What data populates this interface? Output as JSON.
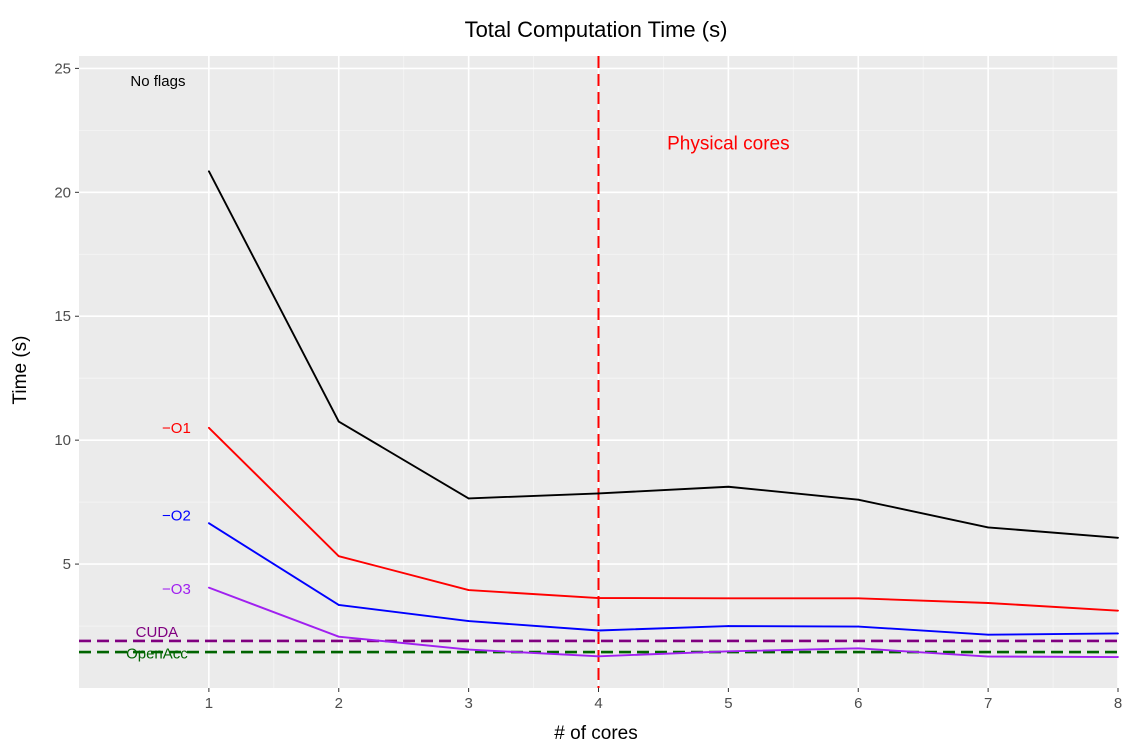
{
  "chart_data": {
    "type": "line",
    "title": "Total Computation Time (s)",
    "xlabel": "# of cores",
    "ylabel": "Time (s)",
    "xlim": [
      0,
      8
    ],
    "ylim": [
      0,
      25.5
    ],
    "grid": true,
    "background": "#ebebeb",
    "x_ticks": [
      1,
      2,
      3,
      4,
      5,
      6,
      7,
      8
    ],
    "y_ticks": [
      5,
      10,
      15,
      20,
      25
    ],
    "x": [
      1,
      2,
      3,
      4,
      5,
      6,
      7,
      8
    ],
    "series": [
      {
        "name": "No flags",
        "color": "#000000",
        "label_x": 0.55,
        "label_y": 24.5,
        "values": [
          20.85,
          10.75,
          7.65,
          7.85,
          8.12,
          7.6,
          6.48,
          6.06
        ]
      },
      {
        "name": "−O1",
        "color": "#ff0000",
        "label_x": 0.75,
        "label_y": 10.5,
        "values": [
          10.5,
          5.32,
          3.95,
          3.63,
          3.62,
          3.62,
          3.43,
          3.12
        ]
      },
      {
        "name": "−O2",
        "color": "#0000ff",
        "label_x": 0.75,
        "label_y": 6.95,
        "values": [
          6.65,
          3.35,
          2.7,
          2.32,
          2.5,
          2.48,
          2.15,
          2.2
        ]
      },
      {
        "name": "−O3",
        "color": "#a020f0",
        "label_x": 0.75,
        "label_y": 4.0,
        "values": [
          4.05,
          2.07,
          1.55,
          1.28,
          1.48,
          1.6,
          1.27,
          1.25
        ]
      }
    ],
    "reference_lines": [
      {
        "name": "CUDA",
        "color": "#800080",
        "y": 1.9,
        "orientation": "horizontal",
        "style": "dashed",
        "label_x": 0.6,
        "label_y": 2.25
      },
      {
        "name": "OpenAcc",
        "color": "#006400",
        "y": 1.45,
        "orientation": "horizontal",
        "style": "dashed",
        "label_x": 0.6,
        "label_y": 1.4
      },
      {
        "name": "Physical cores",
        "color": "#ff0000",
        "x": 4,
        "orientation": "vertical",
        "style": "dashed",
        "label_x": 5.0,
        "label_y": 22.0
      }
    ]
  }
}
